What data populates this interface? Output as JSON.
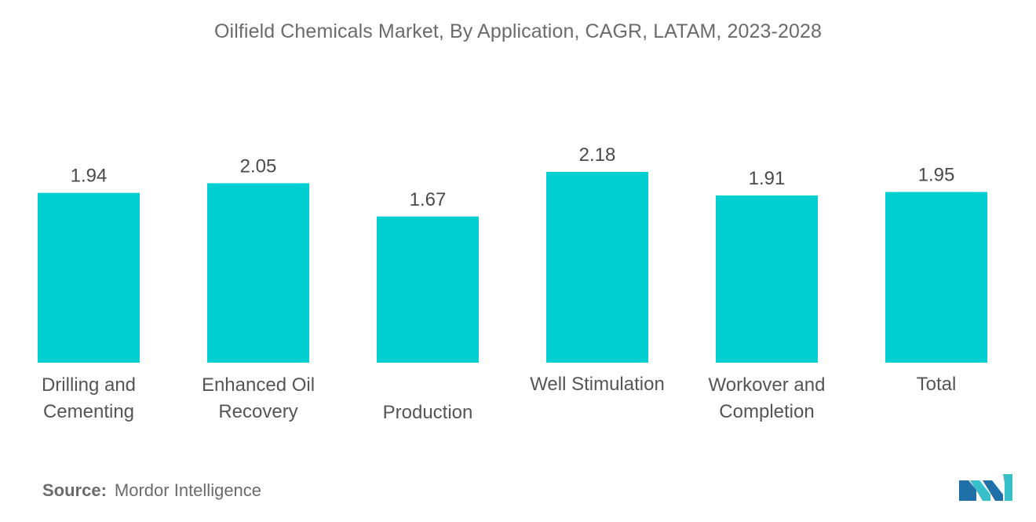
{
  "chart_data": {
    "type": "bar",
    "title": "Oilfield Chemicals Market, By Application, CAGR, LATAM, 2023-2028",
    "categories": [
      "Drilling and Cementing",
      "Enhanced Oil Recovery",
      "Production",
      "Well Stimulation",
      "Workover and Completion",
      "Total"
    ],
    "values": [
      1.94,
      2.05,
      1.67,
      2.18,
      1.91,
      1.95
    ],
    "value_labels": [
      "1.94",
      "2.05",
      "1.67",
      "2.18",
      "1.91",
      "1.95"
    ],
    "xlabel": "",
    "ylabel": "",
    "ylim": [
      0,
      2.4
    ],
    "grid": false,
    "legend": "none",
    "bar_color": "#00CED1"
  },
  "source": {
    "label": "Source:",
    "text": "Mordor Intelligence"
  },
  "logo": {
    "icon": "mordor-intelligence-logo",
    "colors": [
      "#1f6fa8",
      "#37c0c9"
    ]
  }
}
